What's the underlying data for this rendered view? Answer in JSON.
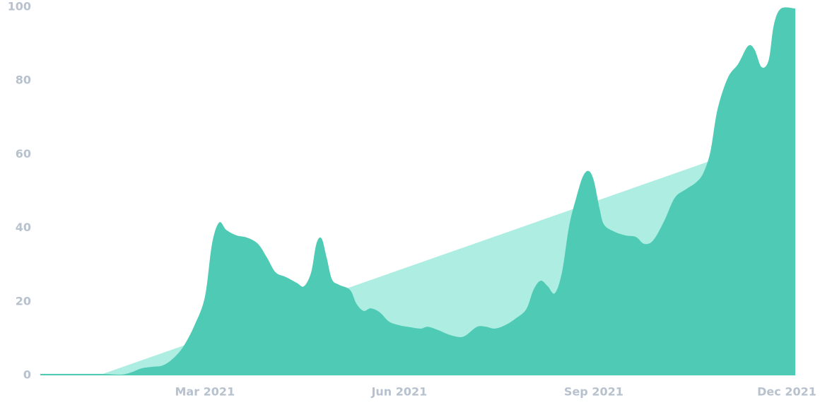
{
  "chart_data": {
    "type": "area",
    "x": [
      -0.54,
      0.36,
      0.69,
      0.86,
      1.02,
      1.18,
      1.35,
      1.51,
      1.67,
      1.84,
      2.0,
      2.11,
      2.22,
      2.33,
      2.49,
      2.65,
      2.82,
      2.96,
      3.09,
      3.25,
      3.42,
      3.53,
      3.64,
      3.72,
      3.8,
      3.88,
      3.96,
      4.07,
      4.24,
      4.34,
      4.45,
      4.56,
      4.7,
      4.84,
      5.0,
      5.16,
      5.33,
      5.44,
      5.6,
      5.76,
      5.93,
      6.03,
      6.2,
      6.34,
      6.47,
      6.63,
      6.8,
      6.96,
      7.07,
      7.18,
      7.29,
      7.4,
      7.51,
      7.62,
      7.73,
      7.83,
      7.92,
      8.0,
      8.09,
      8.16,
      8.32,
      8.49,
      8.65,
      8.78,
      8.92,
      9.09,
      9.25,
      9.42,
      9.58,
      9.69,
      9.8,
      9.91,
      10.07,
      10.23,
      10.38,
      10.48,
      10.59,
      10.7,
      10.78,
      10.89,
      11.11
    ],
    "series": [
      {
        "color": "#4fcbb5",
        "values": [
          0.4,
          0.4,
          0.2,
          0.8,
          1.9,
          2.3,
          2.7,
          4.6,
          7.9,
          13.6,
          21.3,
          35.7,
          41.5,
          39.5,
          38.0,
          37.4,
          35.7,
          31.9,
          28.0,
          26.7,
          25.1,
          24.2,
          28.0,
          35.7,
          37.2,
          31.9,
          26.1,
          24.6,
          23.2,
          19.4,
          17.5,
          18.2,
          17.1,
          14.6,
          13.6,
          13.1,
          12.7,
          13.2,
          12.3,
          11.1,
          10.4,
          10.9,
          13.2,
          13.2,
          12.7,
          13.6,
          15.5,
          18.0,
          23.2,
          25.7,
          24.2,
          22.3,
          28.0,
          40.5,
          48.2,
          53.9,
          55.5,
          53.0,
          45.3,
          40.9,
          39.0,
          38.0,
          37.6,
          35.7,
          36.7,
          42.0,
          48.2,
          50.5,
          52.4,
          54.9,
          60.7,
          72.2,
          80.8,
          84.6,
          89.4,
          88.5,
          83.7,
          85.6,
          95.2,
          99.6,
          99.6
        ]
      }
    ],
    "trend": {
      "color": "#aeede1",
      "x": [
        0.36,
        11.11
      ],
      "values": [
        0,
        66.3
      ]
    },
    "xlim": [
      -0.54,
      11.11
    ],
    "xticks": [
      {
        "value": 2,
        "label": "Mar 2021"
      },
      {
        "value": 5,
        "label": "Jun 2021"
      },
      {
        "value": 8,
        "label": "Sep 2021"
      },
      {
        "value": 11,
        "label": "Dec 2021"
      }
    ],
    "ylim": [
      0,
      100
    ],
    "yticks": [
      0,
      20,
      40,
      60,
      80,
      100
    ]
  }
}
